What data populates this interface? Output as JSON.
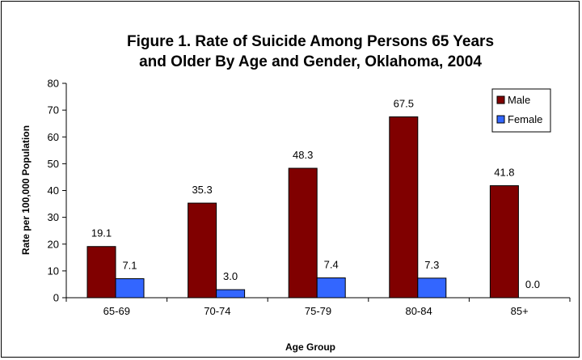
{
  "chart_data": {
    "type": "bar",
    "title_lines": [
      "Figure 1. Rate of Suicide Among Persons 65 Years",
      "and Older By Age and Gender, Oklahoma, 2004"
    ],
    "xlabel": "Age Group",
    "ylabel": "Rate per 100,000 Population",
    "categories": [
      "65-69",
      "70-74",
      "75-79",
      "80-84",
      "85+"
    ],
    "series": [
      {
        "name": "Male",
        "values": [
          19.1,
          35.3,
          48.3,
          67.5,
          41.8
        ],
        "labels": [
          "19.1",
          "35.3",
          "48.3",
          "67.5",
          "41.8"
        ],
        "color": "#800000"
      },
      {
        "name": "Female",
        "values": [
          7.1,
          3.0,
          7.4,
          7.3,
          0.0
        ],
        "labels": [
          "7.1",
          "3.0",
          "7.4",
          "7.3",
          "0.0"
        ],
        "color": "#3366ff"
      }
    ],
    "ylim": [
      0,
      80
    ],
    "yticks": [
      0,
      10,
      20,
      30,
      40,
      50,
      60,
      70,
      80
    ],
    "grid": false,
    "legend_position": "top-right"
  }
}
